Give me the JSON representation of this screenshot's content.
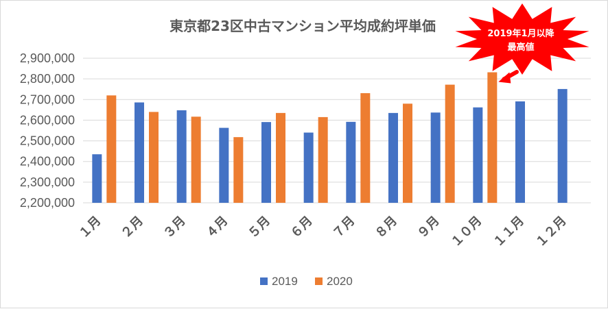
{
  "chart_data": {
    "type": "bar",
    "title": "東京都23区中古マンション平均成約坪単価",
    "categories": [
      "１月",
      "２月",
      "３月",
      "４月",
      "５月",
      "６月",
      "７月",
      "８月",
      "９月",
      "１０月",
      "１１月",
      "１２月"
    ],
    "series": [
      {
        "name": "2019",
        "color": "#4472c4",
        "values": [
          2435000,
          2686000,
          2648000,
          2563000,
          2591000,
          2540000,
          2592000,
          2635000,
          2637000,
          2662000,
          2691000,
          2751000
        ]
      },
      {
        "name": "2020",
        "color": "#ed7d31",
        "values": [
          2720000,
          2640000,
          2617000,
          2518000,
          2635000,
          2615000,
          2731000,
          2680000,
          2772000,
          2832000,
          null,
          null
        ]
      }
    ],
    "ylim": [
      2200000,
      2900000
    ],
    "yticks": [
      "2,900,000",
      "2,800,000",
      "2,700,000",
      "2,600,000",
      "2,500,000",
      "2,400,000",
      "2,300,000",
      "2,200,000"
    ],
    "ytick_values": [
      2900000,
      2800000,
      2700000,
      2600000,
      2500000,
      2400000,
      2300000,
      2200000
    ],
    "grid": true,
    "legend_position": "bottom",
    "annotation": {
      "lines": [
        "2019年1月以降",
        "最高値"
      ],
      "target_series": "2020",
      "target_category": "１０月",
      "color": "#ff0000"
    }
  }
}
